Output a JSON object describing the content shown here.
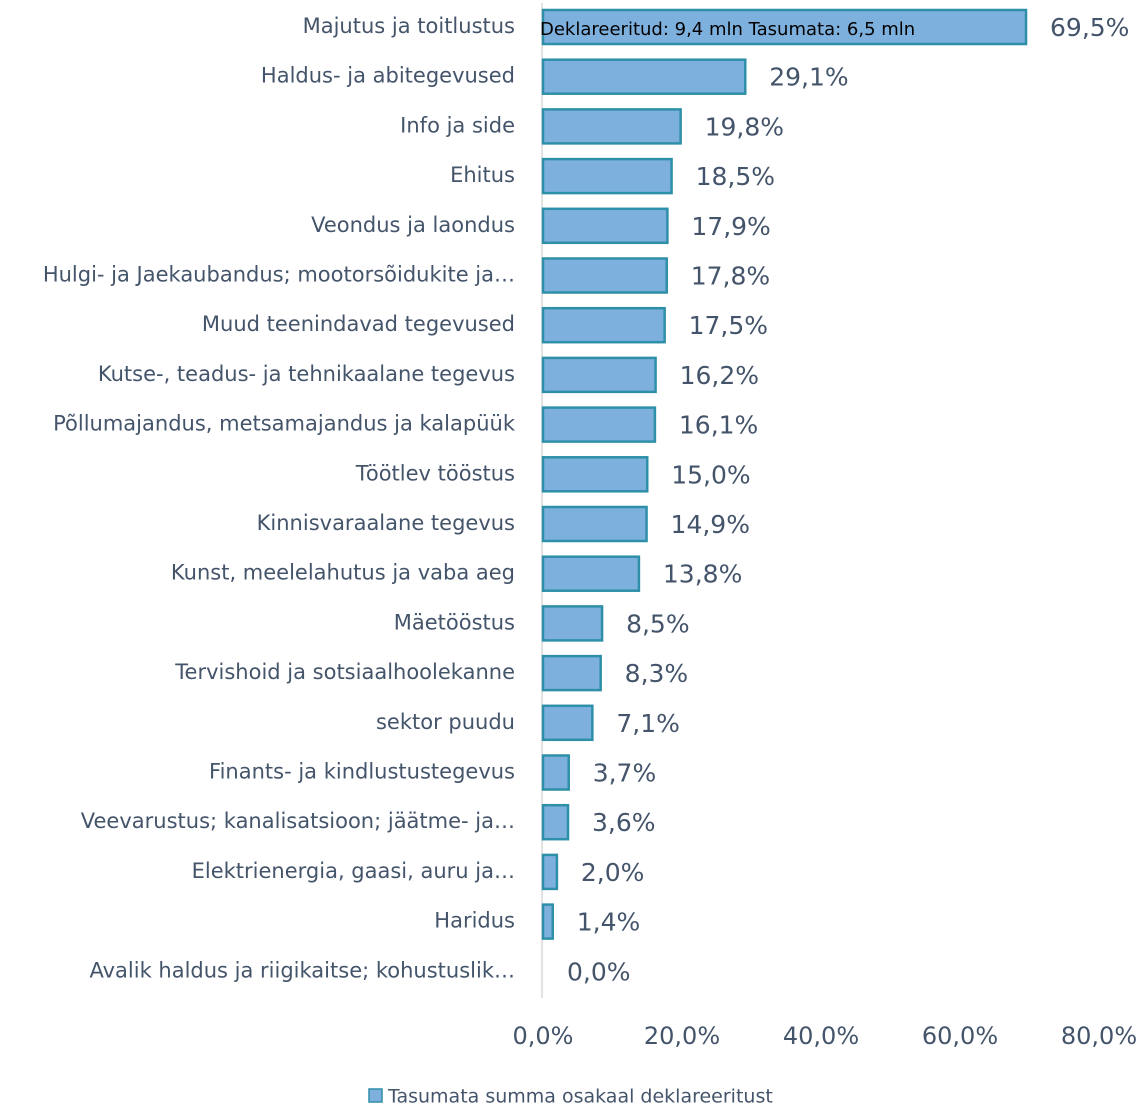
{
  "chart_data": {
    "type": "bar",
    "orientation": "horizontal",
    "categories": [
      "Majutus ja toitlustus",
      "Haldus- ja abitegevused",
      "Info ja side",
      "Ehitus",
      "Veondus ja laondus",
      "Hulgi- ja Jaekaubandus; mootorsõidukite ja…",
      "Muud teenindavad tegevused",
      "Kutse-, teadus- ja tehnikaalane tegevus",
      "Põllumajandus, metsamajandus ja kalapüük",
      "Töötlev tööstus",
      "Kinnisvaraalane tegevus",
      "Kunst, meelelahutus ja vaba aeg",
      "Mäetööstus",
      "Tervishoid ja sotsiaalhoolekanne",
      "sektor puudu",
      "Finants- ja kindlustustegevus",
      "Veevarustus; kanalisatsioon; jäätme- ja…",
      "Elektrienergia, gaasi, auru ja…",
      "Haridus",
      "Avalik haldus ja riigikaitse; kohustuslik…"
    ],
    "series": [
      {
        "name": "Tasumata summa osakaal deklareeritust",
        "color": "#7eb0de",
        "values": [
          69.5,
          29.1,
          19.8,
          18.5,
          17.9,
          17.8,
          17.5,
          16.2,
          16.1,
          15.0,
          14.9,
          13.8,
          8.5,
          8.3,
          7.1,
          3.7,
          3.6,
          2.0,
          1.4,
          0.0
        ],
        "value_labels": [
          "69,5%",
          "29,1%",
          "19,8%",
          "18,5%",
          "17,9%",
          "17,8%",
          "17,5%",
          "16,2%",
          "16,1%",
          "15,0%",
          "14,9%",
          "13,8%",
          "8,5%",
          "8,3%",
          "7,1%",
          "3,7%",
          "3,6%",
          "2,0%",
          "1,4%",
          "0,0%"
        ]
      }
    ],
    "annotation": "Deklareeritud: 9,4 mln Tasumata: 6,5 mln",
    "xlim": [
      0,
      80
    ],
    "xticks": [
      {
        "value": 0,
        "label": "0,0%"
      },
      {
        "value": 20,
        "label": "20,0%"
      },
      {
        "value": 40,
        "label": "40,0%"
      },
      {
        "value": 60,
        "label": "60,0%"
      },
      {
        "value": 80,
        "label": "80,0%"
      }
    ],
    "legend": "bottom"
  }
}
